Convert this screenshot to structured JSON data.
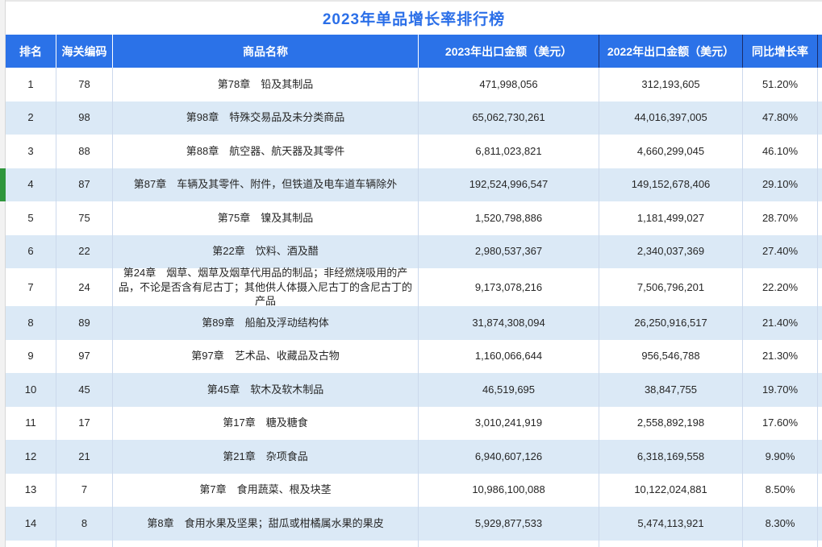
{
  "title": "2023年单品增长率排行榜",
  "colors": {
    "header_blue": "#2b72e8",
    "title_blue": "#2b6fe8",
    "alt_row_blue": "#dbe9f6",
    "grid_line": "#ccd9ec",
    "header_dark_separator": "#1b2d6b",
    "selected_indicator_green": "#2f963c"
  },
  "table": {
    "columns": [
      {
        "key": "rank",
        "label": "排名"
      },
      {
        "key": "code",
        "label": "海关编码"
      },
      {
        "key": "name",
        "label": "商品名称"
      },
      {
        "key": "a2023",
        "label": "2023年出口金额（美元）"
      },
      {
        "key": "a2022",
        "label": "2022年出口金额（美元）"
      },
      {
        "key": "growth",
        "label": "同比增长率"
      }
    ],
    "rows": [
      {
        "rank": "1",
        "code": "78",
        "name": "第78章　铅及其制品",
        "a2023": "471,998,056",
        "a2022": "312,193,605",
        "growth": "51.20%",
        "selected": false
      },
      {
        "rank": "2",
        "code": "98",
        "name": "第98章　特殊交易品及未分类商品",
        "a2023": "65,062,730,261",
        "a2022": "44,016,397,005",
        "growth": "47.80%",
        "selected": false
      },
      {
        "rank": "3",
        "code": "88",
        "name": "第88章　航空器、航天器及其零件",
        "a2023": "6,811,023,821",
        "a2022": "4,660,299,045",
        "growth": "46.10%",
        "selected": false
      },
      {
        "rank": "4",
        "code": "87",
        "name": "第87章　车辆及其零件、附件，但铁道及电车道车辆除外",
        "a2023": "192,524,996,547",
        "a2022": "149,152,678,406",
        "growth": "29.10%",
        "selected": true
      },
      {
        "rank": "5",
        "code": "75",
        "name": "第75章　镍及其制品",
        "a2023": "1,520,798,886",
        "a2022": "1,181,499,027",
        "growth": "28.70%",
        "selected": false
      },
      {
        "rank": "6",
        "code": "22",
        "name": "第22章　饮料、酒及醋",
        "a2023": "2,980,537,367",
        "a2022": "2,340,037,369",
        "growth": "27.40%",
        "selected": false
      },
      {
        "rank": "7",
        "code": "24",
        "name": "第24章　烟草、烟草及烟草代用品的制品；非经燃烧吸用的产品，不论是否含有尼古丁；其他供人体摄入尼古丁的含尼古丁的产品",
        "a2023": "9,173,078,216",
        "a2022": "7,506,796,201",
        "growth": "22.20%",
        "selected": false,
        "tall": true
      },
      {
        "rank": "8",
        "code": "89",
        "name": "第89章　船舶及浮动结构体",
        "a2023": "31,874,308,094",
        "a2022": "26,250,916,517",
        "growth": "21.40%",
        "selected": false
      },
      {
        "rank": "9",
        "code": "97",
        "name": "第97章　艺术品、收藏品及古物",
        "a2023": "1,160,066,644",
        "a2022": "956,546,788",
        "growth": "21.30%",
        "selected": false
      },
      {
        "rank": "10",
        "code": "45",
        "name": "第45章　软木及软木制品",
        "a2023": "46,519,695",
        "a2022": "38,847,755",
        "growth": "19.70%",
        "selected": false
      },
      {
        "rank": "11",
        "code": "17",
        "name": "第17章　糖及糖食",
        "a2023": "3,010,241,919",
        "a2022": "2,558,892,198",
        "growth": "17.60%",
        "selected": false
      },
      {
        "rank": "12",
        "code": "21",
        "name": "第21章　杂项食品",
        "a2023": "6,940,607,126",
        "a2022": "6,318,169,558",
        "growth": "9.90%",
        "selected": false
      },
      {
        "rank": "13",
        "code": "7",
        "name": "第7章　食用蔬菜、根及块茎",
        "a2023": "10,986,100,088",
        "a2022": "10,122,024,881",
        "growth": "8.50%",
        "selected": false
      },
      {
        "rank": "14",
        "code": "8",
        "name": "第8章　食用水果及坚果；甜瓜或柑橘属水果的果皮",
        "a2023": "5,929,877,533",
        "a2022": "5,474,113,921",
        "growth": "8.30%",
        "selected": false
      }
    ]
  }
}
